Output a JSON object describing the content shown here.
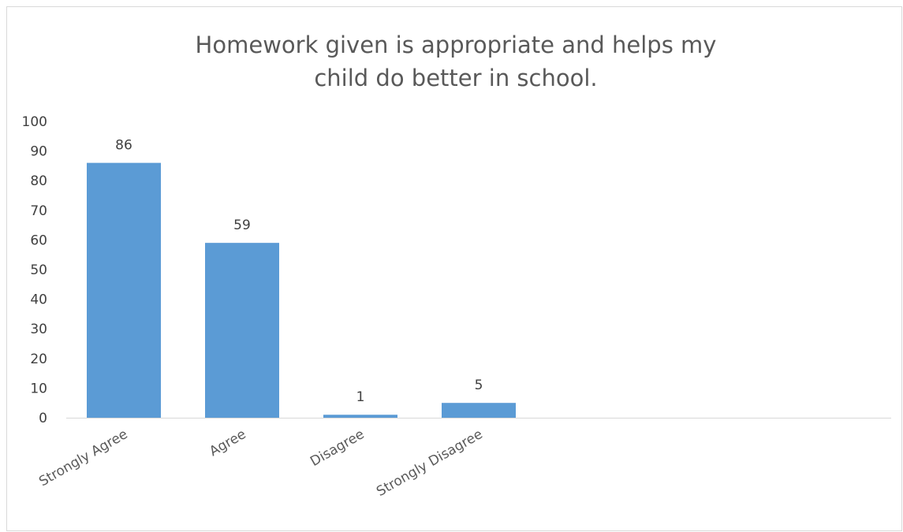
{
  "chart_data": {
    "type": "bar",
    "title": "Homework given is appropriate and helps my child do better in school.",
    "categories": [
      "Strongly Agree",
      "Agree",
      "Disagree",
      "Strongly Disagree"
    ],
    "values": [
      86,
      59,
      1,
      5
    ],
    "ylim": [
      0,
      100
    ],
    "yticks": [
      0,
      10,
      20,
      30,
      40,
      50,
      60,
      70,
      80,
      90,
      100
    ],
    "grid": false,
    "legend": "none",
    "bar_color": "#5b9bd5",
    "axis_color": "#d9d9d9"
  }
}
